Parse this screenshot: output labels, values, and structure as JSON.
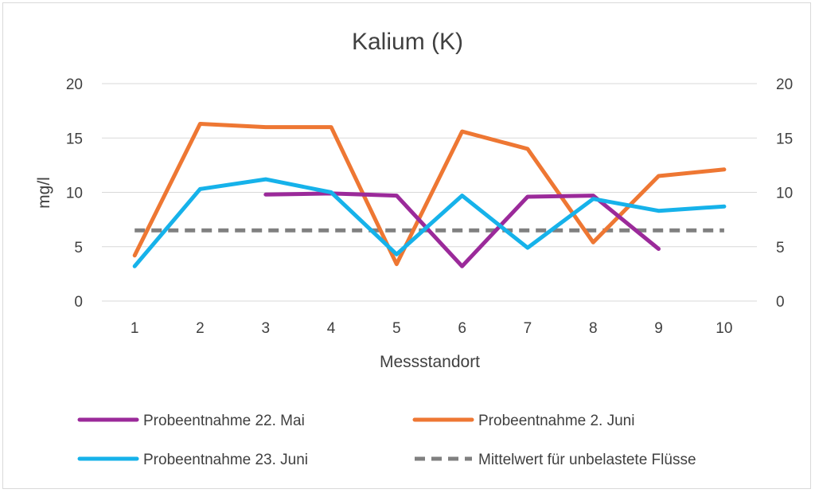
{
  "chart_data": {
    "type": "line",
    "title": "Kalium (K)",
    "xlabel": "Messstandort",
    "ylabel": "mg/l",
    "categories": [
      "1",
      "2",
      "3",
      "4",
      "5",
      "6",
      "7",
      "8",
      "9",
      "10"
    ],
    "ylim": [
      0,
      20
    ],
    "yticks": [
      "0",
      "5",
      "10",
      "15",
      "20"
    ],
    "secondary_yticks": [
      "0",
      "5",
      "10",
      "15",
      "20"
    ],
    "grid": true,
    "legend_position": "bottom",
    "series": [
      {
        "name": "Probeentnahme 22. Mai",
        "color": "#9b2a9a",
        "dash": false,
        "values": [
          null,
          null,
          9.8,
          9.9,
          9.7,
          3.2,
          9.6,
          9.7,
          4.8,
          null
        ]
      },
      {
        "name": "Probeentnahme 2. Juni",
        "color": "#ee7733",
        "dash": false,
        "values": [
          4.2,
          16.3,
          16.0,
          16.0,
          3.4,
          15.6,
          14.0,
          5.4,
          11.5,
          12.1
        ]
      },
      {
        "name": "Probeentnahme 23. Juni",
        "color": "#16b2ea",
        "dash": false,
        "values": [
          3.2,
          10.3,
          11.2,
          10.0,
          4.3,
          9.7,
          4.9,
          9.4,
          8.3,
          8.7
        ]
      },
      {
        "name": "Mittelwert für unbelastete Flüsse",
        "color": "#808080",
        "dash": true,
        "values": [
          6.5,
          6.5,
          6.5,
          6.5,
          6.5,
          6.5,
          6.5,
          6.5,
          6.5,
          6.5
        ]
      }
    ]
  }
}
